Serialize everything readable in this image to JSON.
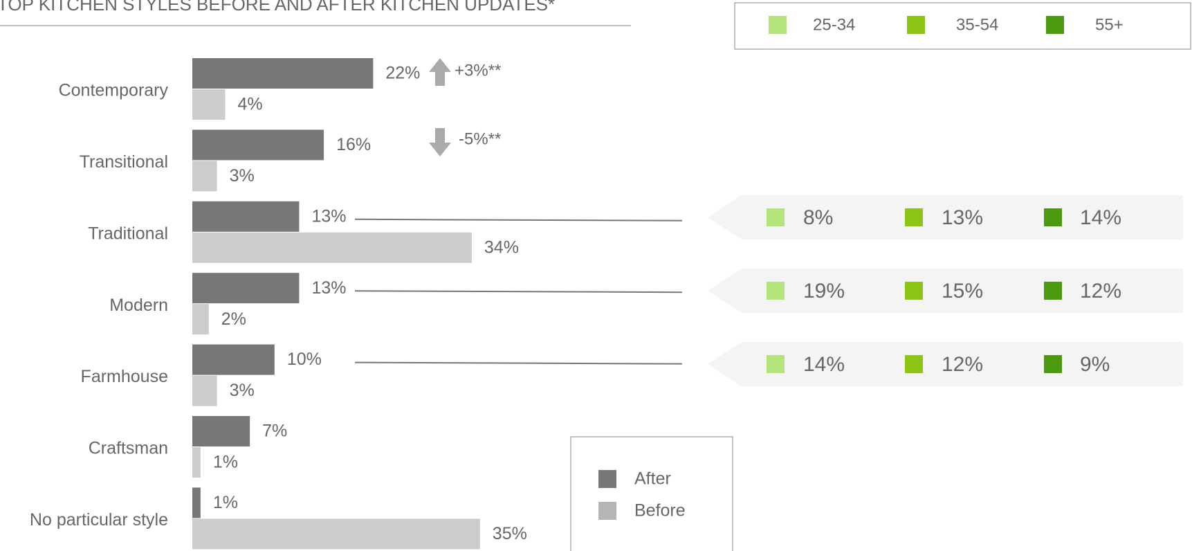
{
  "chart_data": {
    "type": "bar",
    "title": "TOP KITCHEN STYLES BEFORE AND AFTER KITCHEN UPDATES*",
    "categories": [
      "Contemporary",
      "Transitional",
      "Traditional",
      "Modern",
      "Farmhouse",
      "Craftsman",
      "No particular style"
    ],
    "series": [
      {
        "name": "After",
        "color": "#777777",
        "values": [
          22,
          16,
          13,
          13,
          10,
          7,
          1
        ],
        "value_labels": [
          "22%",
          "16%",
          "13%",
          "13%",
          "10%",
          "7%",
          "1%"
        ]
      },
      {
        "name": "Before",
        "color": "#cccccc",
        "values": [
          4,
          3,
          34,
          2,
          3,
          1,
          35
        ],
        "value_labels": [
          "4%",
          "3%",
          "34%",
          "2%",
          "3%",
          "1%",
          "35%"
        ]
      }
    ],
    "annotations": [
      "+3%**",
      "-5%**"
    ],
    "age_breakdown": {
      "series": [
        {
          "name": "25-34",
          "color": "#b3e57a",
          "values": [
            8,
            19,
            14
          ],
          "value_labels": [
            "8%",
            "19%",
            "14%"
          ]
        },
        {
          "name": "35-54",
          "color": "#8cc413",
          "values": [
            13,
            15,
            12
          ],
          "value_labels": [
            "13%",
            "15%",
            "12%"
          ]
        },
        {
          "name": "55+",
          "color": "#4a990e",
          "values": [
            14,
            12,
            9
          ],
          "value_labels": [
            "14%",
            "12%",
            "9%"
          ]
        }
      ]
    }
  }
}
